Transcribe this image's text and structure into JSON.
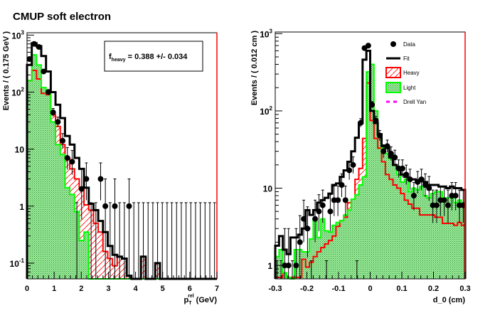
{
  "title": "CMUP soft electron",
  "colors": {
    "data": "#000000",
    "fit": "#000000",
    "heavy": "#ff0000",
    "light": "#00ff00",
    "light_fill": "#4cc74c",
    "drell_yan": "#ff00ff"
  },
  "chart_data": [
    {
      "type": "histogram",
      "scale": "log",
      "xlabel": "p_T^rel (GeV)",
      "xlabel_main": "p",
      "xlabel_sub": "T",
      "xlabel_sup": "rel",
      "xlabel_unit": "(GeV)",
      "ylabel": "Events / ( 0.175 GeV )",
      "xlim": [
        0,
        7
      ],
      "ylim": [
        0.053,
        1100
      ],
      "bin_width": 0.175,
      "xticks": [
        "0",
        "1",
        "2",
        "3",
        "4",
        "5",
        "6",
        "7"
      ],
      "yticks": [
        {
          "v": 1000,
          "base": "10",
          "exp": "3"
        },
        {
          "v": 100,
          "base": "10",
          "exp": "2"
        },
        {
          "v": 10,
          "base": "10",
          "exp": ""
        },
        {
          "v": 1,
          "base": "1",
          "exp": ""
        },
        {
          "v": 0.1,
          "base": "10",
          "exp": "-1"
        }
      ],
      "annotation": {
        "label_main": "f",
        "label_sub": "heavy",
        "text": " =  0.388 +/- 0.034"
      },
      "series": [
        {
          "name": "Heavy",
          "values": [
            160,
            240,
            170,
            95,
            90,
            40,
            25,
            12,
            7,
            4.5,
            3,
            2,
            1.05,
            0.85,
            0.5,
            0.35,
            0.16,
            0.12,
            0.09,
            0.13,
            0.12,
            0.06,
            0.04,
            0,
            0.13,
            0,
            0,
            0.1,
            0,
            0,
            0,
            0,
            0,
            0,
            0,
            0,
            0,
            0,
            0,
            0
          ]
        },
        {
          "name": "Light",
          "values": [
            160,
            450,
            300,
            120,
            95,
            30,
            12,
            8,
            2.1,
            1.6,
            0.8,
            0.25,
            0.35,
            0,
            0,
            0,
            0,
            0,
            0,
            0,
            0,
            0,
            0,
            0,
            0,
            0,
            0,
            0,
            0,
            0,
            0,
            0,
            0,
            0,
            0,
            0,
            0,
            0,
            0,
            0
          ]
        },
        {
          "name": "Fit",
          "values": [
            300,
            720,
            640,
            430,
            230,
            100,
            60,
            35,
            17,
            12,
            7,
            4.5,
            2.1,
            1.1,
            0.85,
            0.55,
            0.35,
            0.2,
            0.14,
            0.13,
            0.12,
            0.06,
            0.04,
            0,
            0.13,
            0,
            0,
            0.1,
            0,
            0,
            0,
            0,
            0,
            0,
            0,
            0,
            0,
            0,
            0,
            0
          ]
        },
        {
          "name": "Data",
          "values": [
            380,
            700,
            620,
            230,
            100,
            44,
            30,
            14,
            7,
            6,
            0,
            2,
            3,
            0,
            0,
            3,
            1,
            0,
            1,
            0,
            0,
            1,
            0,
            0,
            0,
            0,
            0,
            0,
            0,
            0,
            0,
            0,
            0,
            0,
            0,
            0,
            0,
            0,
            0,
            0
          ]
        }
      ]
    },
    {
      "type": "histogram",
      "scale": "log",
      "xlabel": "d_0 (cm)",
      "xlabel_main": "d",
      "xlabel_sub": "0",
      "xlabel_sup": "",
      "xlabel_unit": "(cm)",
      "ylabel": "Events / ( 0.012 cm )",
      "xlim": [
        -0.3,
        0.3
      ],
      "ylim": [
        0.67,
        1050
      ],
      "bin_width": 0.012,
      "xticks": [
        "-0.3",
        "-0.2",
        "-0.1",
        "0",
        "0.1",
        "0.2",
        "0.3"
      ],
      "yticks": [
        {
          "v": 1000,
          "base": "10",
          "exp": "3"
        },
        {
          "v": 100,
          "base": "10",
          "exp": "2"
        },
        {
          "v": 10,
          "base": "10",
          "exp": ""
        },
        {
          "v": 1,
          "base": "1",
          "exp": ""
        }
      ],
      "legend": {
        "position": "top-right",
        "entries": [
          "Data",
          "Fit",
          "Heavy",
          "Light",
          "Drell Yan"
        ]
      },
      "series": [
        {
          "name": "Heavy",
          "values": [
            0.7,
            0.7,
            0.8,
            0.7,
            0.7,
            0.7,
            0.7,
            1.2,
            0.95,
            1.1,
            1.3,
            1.5,
            1.7,
            1.9,
            2.1,
            2.4,
            3.2,
            3.8,
            4.2,
            6.5,
            7.2,
            13,
            18,
            44,
            230,
            75,
            44,
            33,
            22,
            15,
            13,
            11,
            10,
            8.5,
            7,
            6.2,
            5.5,
            5.5,
            4.5,
            4.5,
            4.5,
            4.5,
            4.2,
            4.2,
            3.5,
            3.5,
            3.5,
            3.3,
            3.6,
            3.3
          ]
        },
        {
          "name": "Light",
          "values": [
            1.3,
            1.6,
            0.8,
            0.7,
            0.6,
            1.6,
            1.6,
            1.5,
            1.5,
            2.2,
            4,
            2.3,
            4,
            2.8,
            2.7,
            3.3,
            3.6,
            3.8,
            4.5,
            5.2,
            7.2,
            8.2,
            11,
            14,
            320,
            400,
            100,
            48,
            33,
            28,
            24,
            20,
            15,
            12,
            13,
            9,
            10,
            9.5,
            10.5,
            8,
            7.5,
            8.5,
            9,
            9,
            7,
            7.5,
            8,
            6.5,
            7,
            6.5
          ]
        },
        {
          "name": "Fit",
          "values": [
            1.8,
            2.4,
            1.6,
            1.4,
            2.3,
            2.3,
            2.5,
            3.0,
            5.2,
            4.5,
            5.2,
            6.5,
            7,
            7.5,
            8.5,
            11,
            11.5,
            14,
            17,
            22,
            30,
            45,
            70,
            460,
            600,
            100,
            70,
            50,
            35,
            33,
            25,
            20,
            18,
            15,
            14,
            13,
            13,
            12,
            13,
            12,
            11,
            11,
            11,
            10.5,
            10.5,
            10,
            10.5,
            10,
            10,
            9.5
          ]
        },
        {
          "name": "Data",
          "values": [
            0,
            0,
            1,
            1,
            0,
            1,
            2,
            4,
            3,
            0,
            4,
            5,
            6,
            0,
            5,
            7,
            7,
            11,
            7,
            17,
            20,
            0,
            70,
            650,
            700,
            120,
            75,
            48,
            30,
            35,
            28,
            25,
            18,
            18,
            15,
            13,
            8,
            12,
            13,
            11,
            10,
            6,
            6,
            7,
            7,
            6,
            8,
            8,
            6,
            6
          ]
        },
        {
          "name": "Drell Yan",
          "values": []
        }
      ]
    }
  ]
}
